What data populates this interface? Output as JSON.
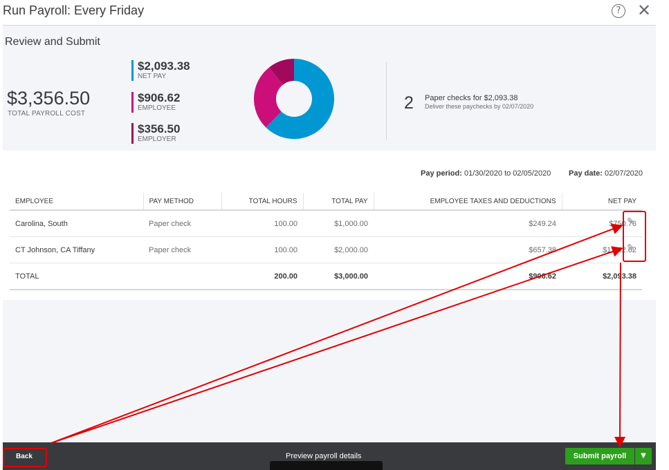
{
  "header": {
    "title": "Run Payroll: Every Friday",
    "help_icon": "question-circle-icon",
    "help_glyph": "?",
    "close_icon": "close-icon",
    "close_glyph": "✕"
  },
  "summary": {
    "section_title": "Review and Submit",
    "total_cost": "$3,356.50",
    "total_cost_label": "TOTAL PAYROLL COST",
    "stats": [
      {
        "amount": "$2,093.38",
        "label": "NET PAY",
        "color": "#0097d3"
      },
      {
        "amount": "$906.62",
        "label": "EMPLOYEE",
        "color": "#cc0e7a"
      },
      {
        "amount": "$356.50",
        "label": "EMPLOYER",
        "color": "#a1095c"
      }
    ],
    "donut": {
      "segments": [
        {
          "value": 2093.38,
          "color": "#0097d3"
        },
        {
          "value": 906.62,
          "color": "#cc0e7a"
        },
        {
          "value": 356.5,
          "color": "#a1095c"
        }
      ]
    },
    "checks_count": "2",
    "checks_text": "Paper checks for $2,093.38",
    "checks_sub": "Deliver these paychecks by 02/07/2020"
  },
  "period": {
    "pay_period_label": "Pay period:",
    "pay_period_value": "01/30/2020 to 02/05/2020",
    "pay_date_label": "Pay date:",
    "pay_date_value": "02/07/2020"
  },
  "table": {
    "headers": [
      "EMPLOYEE",
      "PAY METHOD",
      "TOTAL HOURS",
      "TOTAL PAY",
      "EMPLOYEE TAXES AND DEDUCTIONS",
      "NET PAY"
    ],
    "rows": [
      {
        "employee": "Carolina, South",
        "method": "Paper check",
        "hours": "100.00",
        "pay": "$1,000.00",
        "taxes": "$249.24",
        "net": "$750.76"
      },
      {
        "employee": "CT Johnson, CA Tiffany",
        "method": "Paper check",
        "hours": "100.00",
        "pay": "$2,000.00",
        "taxes": "$657.38",
        "net": "$1,342.62"
      }
    ],
    "total": {
      "label": "TOTAL",
      "hours": "200.00",
      "pay": "$3,000.00",
      "taxes": "$906.62",
      "net": "$2,093.38"
    },
    "edit_icon": "pencil-icon",
    "edit_glyph": "✎"
  },
  "footer": {
    "back_label": "Back",
    "preview_label": "Preview payroll details",
    "submit_label": "Submit payroll",
    "submit_caret": "▼",
    "accent": "#2ca01c"
  },
  "annotation": {
    "color": "#e00000"
  }
}
